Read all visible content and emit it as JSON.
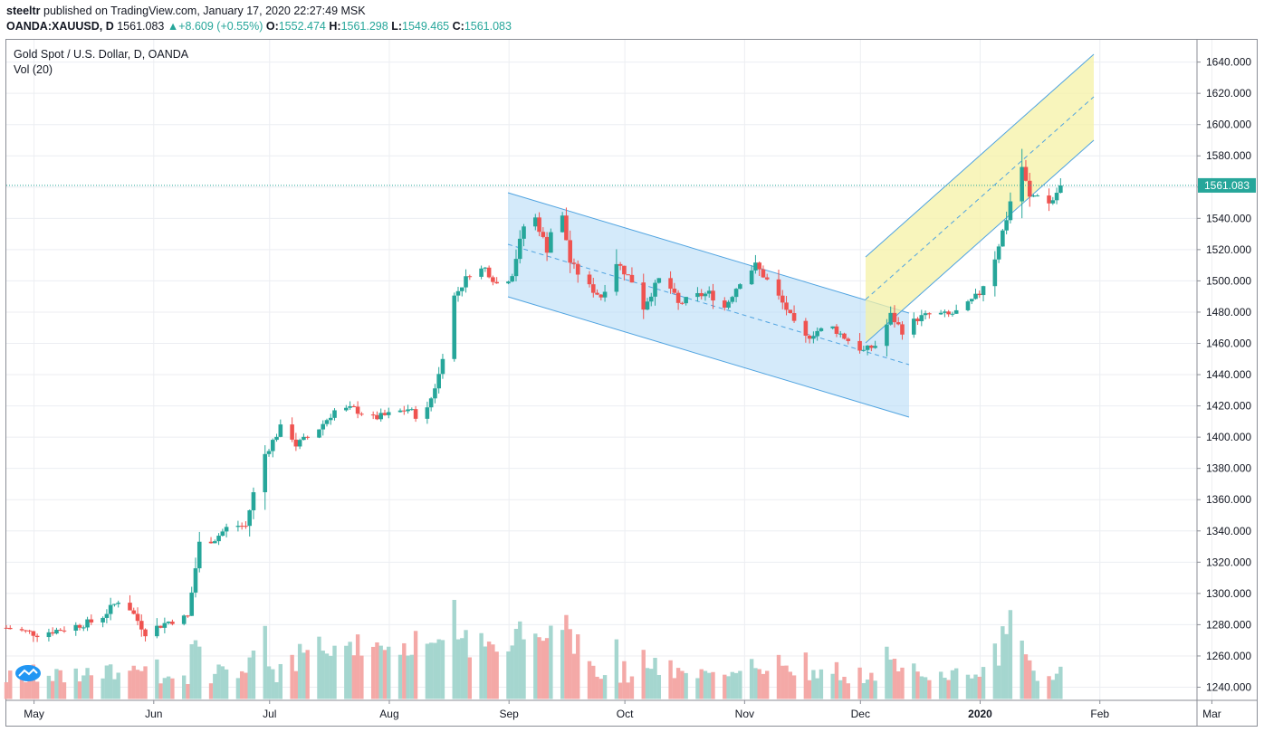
{
  "header": {
    "author": "steeltr",
    "published_text": "published on TradingView.com, January 17, 2020 22:27:49 MSK",
    "symbol": "OANDA:XAUUSD, D",
    "last": "1561.083",
    "change_arrow": "▲",
    "change": "+8.609 (+0.55%)",
    "o_label": "O:",
    "o_val": "1552.474",
    "h_label": "H:",
    "h_val": "1561.298",
    "l_label": "L:",
    "l_val": "1549.465",
    "c_label": "C:",
    "c_val": "1561.083"
  },
  "legend": {
    "title": "Gold Spot / U.S. Dollar, D, OANDA",
    "indicator": "Vol (20)"
  },
  "price_tag": "1561.083",
  "colors": {
    "up": "#26a69a",
    "down": "#ef5350",
    "vol_up": "#a5d6cf",
    "vol_down": "#f4a9a7",
    "channel_blue": "#4fa3e0",
    "channel_yellow": "#f5f1a6"
  },
  "chart_data": {
    "type": "candlestick",
    "y_axis_ticks": [
      "1640.000",
      "1620.000",
      "1600.000",
      "1580.000",
      "1560.000",
      "1540.000",
      "1520.000",
      "1500.000",
      "1480.000",
      "1460.000",
      "1440.000",
      "1420.000",
      "1400.000",
      "1380.000",
      "1360.000",
      "1340.000",
      "1320.000",
      "1300.000",
      "1280.000",
      "1260.000",
      "1240.000"
    ],
    "x_axis_ticks": [
      "May",
      "Jun",
      "Jul",
      "Aug",
      "Sep",
      "Oct",
      "Nov",
      "Dec",
      "2020",
      "Feb",
      "Mar"
    ],
    "ylim": [
      1232,
      1652
    ],
    "period": {
      "start": "2019-04-25",
      "end": "2020-01-17"
    },
    "close_keypoints": [
      [
        0,
        1278
      ],
      [
        8,
        1274
      ],
      [
        16,
        1278
      ],
      [
        24,
        1283
      ],
      [
        30,
        1298
      ],
      [
        36,
        1275
      ],
      [
        42,
        1282
      ],
      [
        47,
        1285
      ],
      [
        50,
        1332
      ],
      [
        54,
        1335
      ],
      [
        58,
        1344
      ],
      [
        62,
        1343
      ],
      [
        66,
        1385
      ],
      [
        72,
        1410
      ],
      [
        75,
        1395
      ],
      [
        80,
        1403
      ],
      [
        85,
        1417
      ],
      [
        90,
        1418
      ],
      [
        95,
        1412
      ],
      [
        100,
        1415
      ],
      [
        104,
        1418
      ],
      [
        108,
        1410
      ],
      [
        112,
        1440
      ],
      [
        116,
        1490
      ],
      [
        120,
        1505
      ],
      [
        124,
        1508
      ],
      [
        128,
        1495
      ],
      [
        131,
        1505
      ],
      [
        134,
        1535
      ],
      [
        137,
        1540
      ],
      [
        140,
        1520
      ],
      [
        143,
        1555
      ],
      [
        146,
        1512
      ],
      [
        150,
        1498
      ],
      [
        154,
        1490
      ],
      [
        158,
        1512
      ],
      [
        162,
        1500
      ],
      [
        164,
        1478
      ],
      [
        166,
        1488
      ],
      [
        170,
        1505
      ],
      [
        174,
        1485
      ],
      [
        178,
        1490
      ],
      [
        182,
        1492
      ],
      [
        186,
        1483
      ],
      [
        190,
        1500
      ],
      [
        194,
        1510
      ],
      [
        198,
        1497
      ],
      [
        202,
        1482
      ],
      [
        206,
        1462
      ],
      [
        210,
        1468
      ],
      [
        214,
        1470
      ],
      [
        218,
        1462
      ],
      [
        222,
        1455
      ],
      [
        226,
        1460
      ],
      [
        229,
        1478
      ],
      [
        232,
        1468
      ],
      [
        236,
        1476
      ],
      [
        240,
        1479
      ],
      [
        244,
        1478
      ],
      [
        248,
        1482
      ],
      [
        252,
        1492
      ],
      [
        256,
        1515
      ],
      [
        259,
        1540
      ],
      [
        261,
        1562
      ],
      [
        263,
        1573
      ],
      [
        265,
        1553
      ],
      [
        267,
        1556
      ],
      [
        269,
        1547
      ],
      [
        271,
        1552
      ],
      [
        273,
        1561
      ]
    ],
    "volume_scale_note": "volume axis unlabeled",
    "annotations": {
      "descending_channel_dashed_mid_line": true,
      "ascending_channel_dashed_mid_line": true,
      "horizontal_dotted_line": "1561.083"
    }
  }
}
